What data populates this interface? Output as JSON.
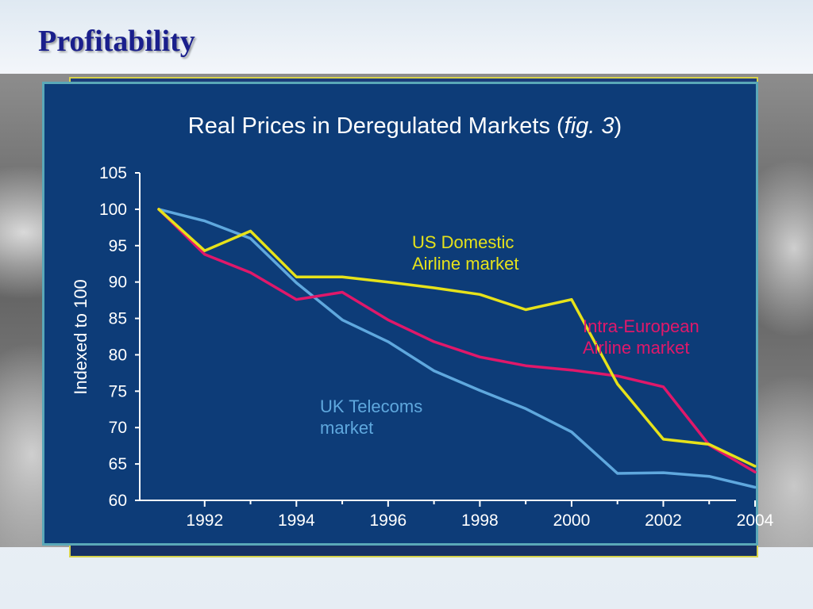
{
  "slide": {
    "title": "Profitability"
  },
  "colors": {
    "panel": "#0d3c78",
    "text": "#ffffff",
    "us": "#e6e21a",
    "eu": "#e0186a",
    "uk": "#5fa8de"
  },
  "chart_data": {
    "type": "line",
    "title": "Real Prices in Deregulated Markets (",
    "title_italic": "fig. 3",
    "title_end": ")",
    "ylabel": "Indexed to 100",
    "xlabel": "",
    "xlim": [
      1991,
      2004
    ],
    "ylim": [
      60,
      105
    ],
    "x_ticks": [
      "1992",
      "1994",
      "1996",
      "1998",
      "2000",
      "2002",
      "2004"
    ],
    "y_ticks": [
      "60",
      "65",
      "70",
      "75",
      "80",
      "85",
      "90",
      "95",
      "100",
      "105"
    ],
    "series": [
      {
        "name": "US Domestic Airline market",
        "label_lines": [
          "US Domestic",
          "Airline market"
        ],
        "color": "#e6e21a",
        "x": [
          1991,
          1992,
          1993,
          1994,
          1995,
          1996,
          1997,
          1998,
          1999,
          2000,
          2001,
          2002,
          2003,
          2004
        ],
        "values": [
          100,
          94.3,
          97,
          90.7,
          90.7,
          90,
          89.2,
          88.3,
          86.2,
          87.6,
          76,
          68.4,
          67.7,
          64.7
        ]
      },
      {
        "name": "Intra-European Airline market",
        "label_lines": [
          "Intra-European",
          "Airline market"
        ],
        "color": "#e0186a",
        "x": [
          1991,
          1992,
          1993,
          1994,
          1995,
          1996,
          1997,
          1998,
          1999,
          2000,
          2001,
          2002,
          2003,
          2004
        ],
        "values": [
          100,
          93.8,
          91.3,
          87.6,
          88.6,
          84.8,
          81.8,
          79.7,
          78.5,
          77.9,
          77.1,
          75.6,
          67.6,
          63.9
        ]
      },
      {
        "name": "UK Telecoms market",
        "label_lines": [
          "UK Telecoms",
          "market"
        ],
        "color": "#5fa8de",
        "x": [
          1991,
          1992,
          1993,
          1994,
          1995,
          1996,
          1997,
          1998,
          1999,
          2000,
          2001,
          2002,
          2003,
          2004
        ],
        "values": [
          100,
          98.4,
          96,
          89.9,
          84.8,
          81.8,
          77.8,
          75.1,
          72.6,
          69.4,
          63.7,
          63.8,
          63.3,
          61.8
        ]
      }
    ]
  }
}
